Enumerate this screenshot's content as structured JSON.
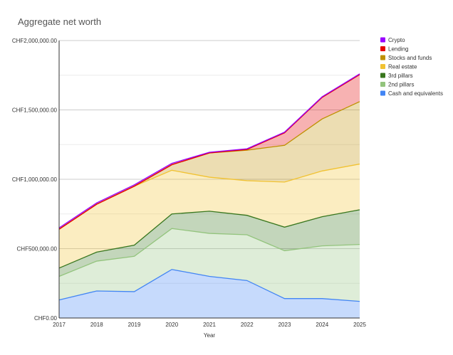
{
  "chart_data": {
    "type": "area",
    "stacked": true,
    "title": "Aggregate net worth",
    "xlabel": "Year",
    "ylabel": "",
    "x": [
      "2017",
      "2018",
      "2019",
      "2020",
      "2021",
      "2022",
      "2023",
      "2024",
      "2025"
    ],
    "ylim": [
      0,
      2000000
    ],
    "yticks": [
      0,
      500000,
      1000000,
      1500000,
      2000000
    ],
    "ytick_labels": [
      "CHF0.00",
      "CHF500,000.00",
      "CHF1,000,000.00",
      "CHF1,500,000.00",
      "CHF2,000,000.00"
    ],
    "grid": true,
    "legend_position": "right",
    "series": [
      {
        "name": "Cash and equivalents",
        "color": "#4285f4",
        "values": [
          130000,
          195000,
          190000,
          350000,
          300000,
          270000,
          140000,
          140000,
          120000
        ]
      },
      {
        "name": "2nd pillars",
        "color": "#93c47d",
        "values": [
          170000,
          215000,
          255000,
          295000,
          310000,
          330000,
          345000,
          380000,
          410000
        ]
      },
      {
        "name": "3rd pillars",
        "color": "#38761d",
        "values": [
          60000,
          65000,
          80000,
          105000,
          160000,
          140000,
          170000,
          210000,
          250000
        ]
      },
      {
        "name": "Real estate",
        "color": "#f1c232",
        "values": [
          280000,
          345000,
          425000,
          315000,
          245000,
          250000,
          325000,
          330000,
          330000
        ]
      },
      {
        "name": "Stocks and funds",
        "color": "#bf9000",
        "values": [
          0,
          0,
          0,
          40000,
          175000,
          220000,
          265000,
          375000,
          450000
        ]
      },
      {
        "name": "Lending",
        "color": "#e60000",
        "values": [
          0,
          0,
          0,
          0,
          0,
          5000,
          90000,
          155000,
          195000
        ]
      },
      {
        "name": "Crypto",
        "color": "#9900ff",
        "values": [
          10000,
          10000,
          10000,
          10000,
          5000,
          5000,
          5000,
          5000,
          5000
        ]
      }
    ]
  }
}
